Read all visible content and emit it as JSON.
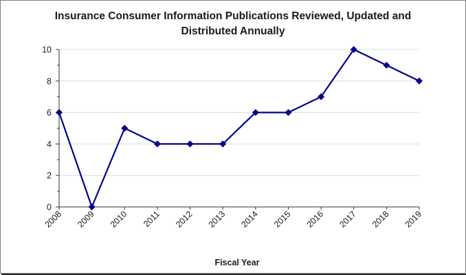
{
  "chart_data": {
    "type": "line",
    "title": "Insurance Consumer Information Publications Reviewed, Updated and\nDistributed Annually",
    "xlabel": "Fiscal Year",
    "ylabel": "",
    "categories": [
      "2008",
      "2009",
      "2010",
      "2011",
      "2012",
      "2013",
      "2014",
      "2015",
      "2016",
      "2017",
      "2018",
      "2019"
    ],
    "series": [
      {
        "values": [
          6,
          0,
          5,
          4,
          4,
          4,
          6,
          6,
          7,
          10,
          9,
          8
        ],
        "color": "#00008b"
      }
    ],
    "ylim": [
      0,
      10
    ],
    "yticks": [
      0,
      2,
      4,
      6,
      8,
      10
    ],
    "grid": true,
    "legend": "none"
  }
}
